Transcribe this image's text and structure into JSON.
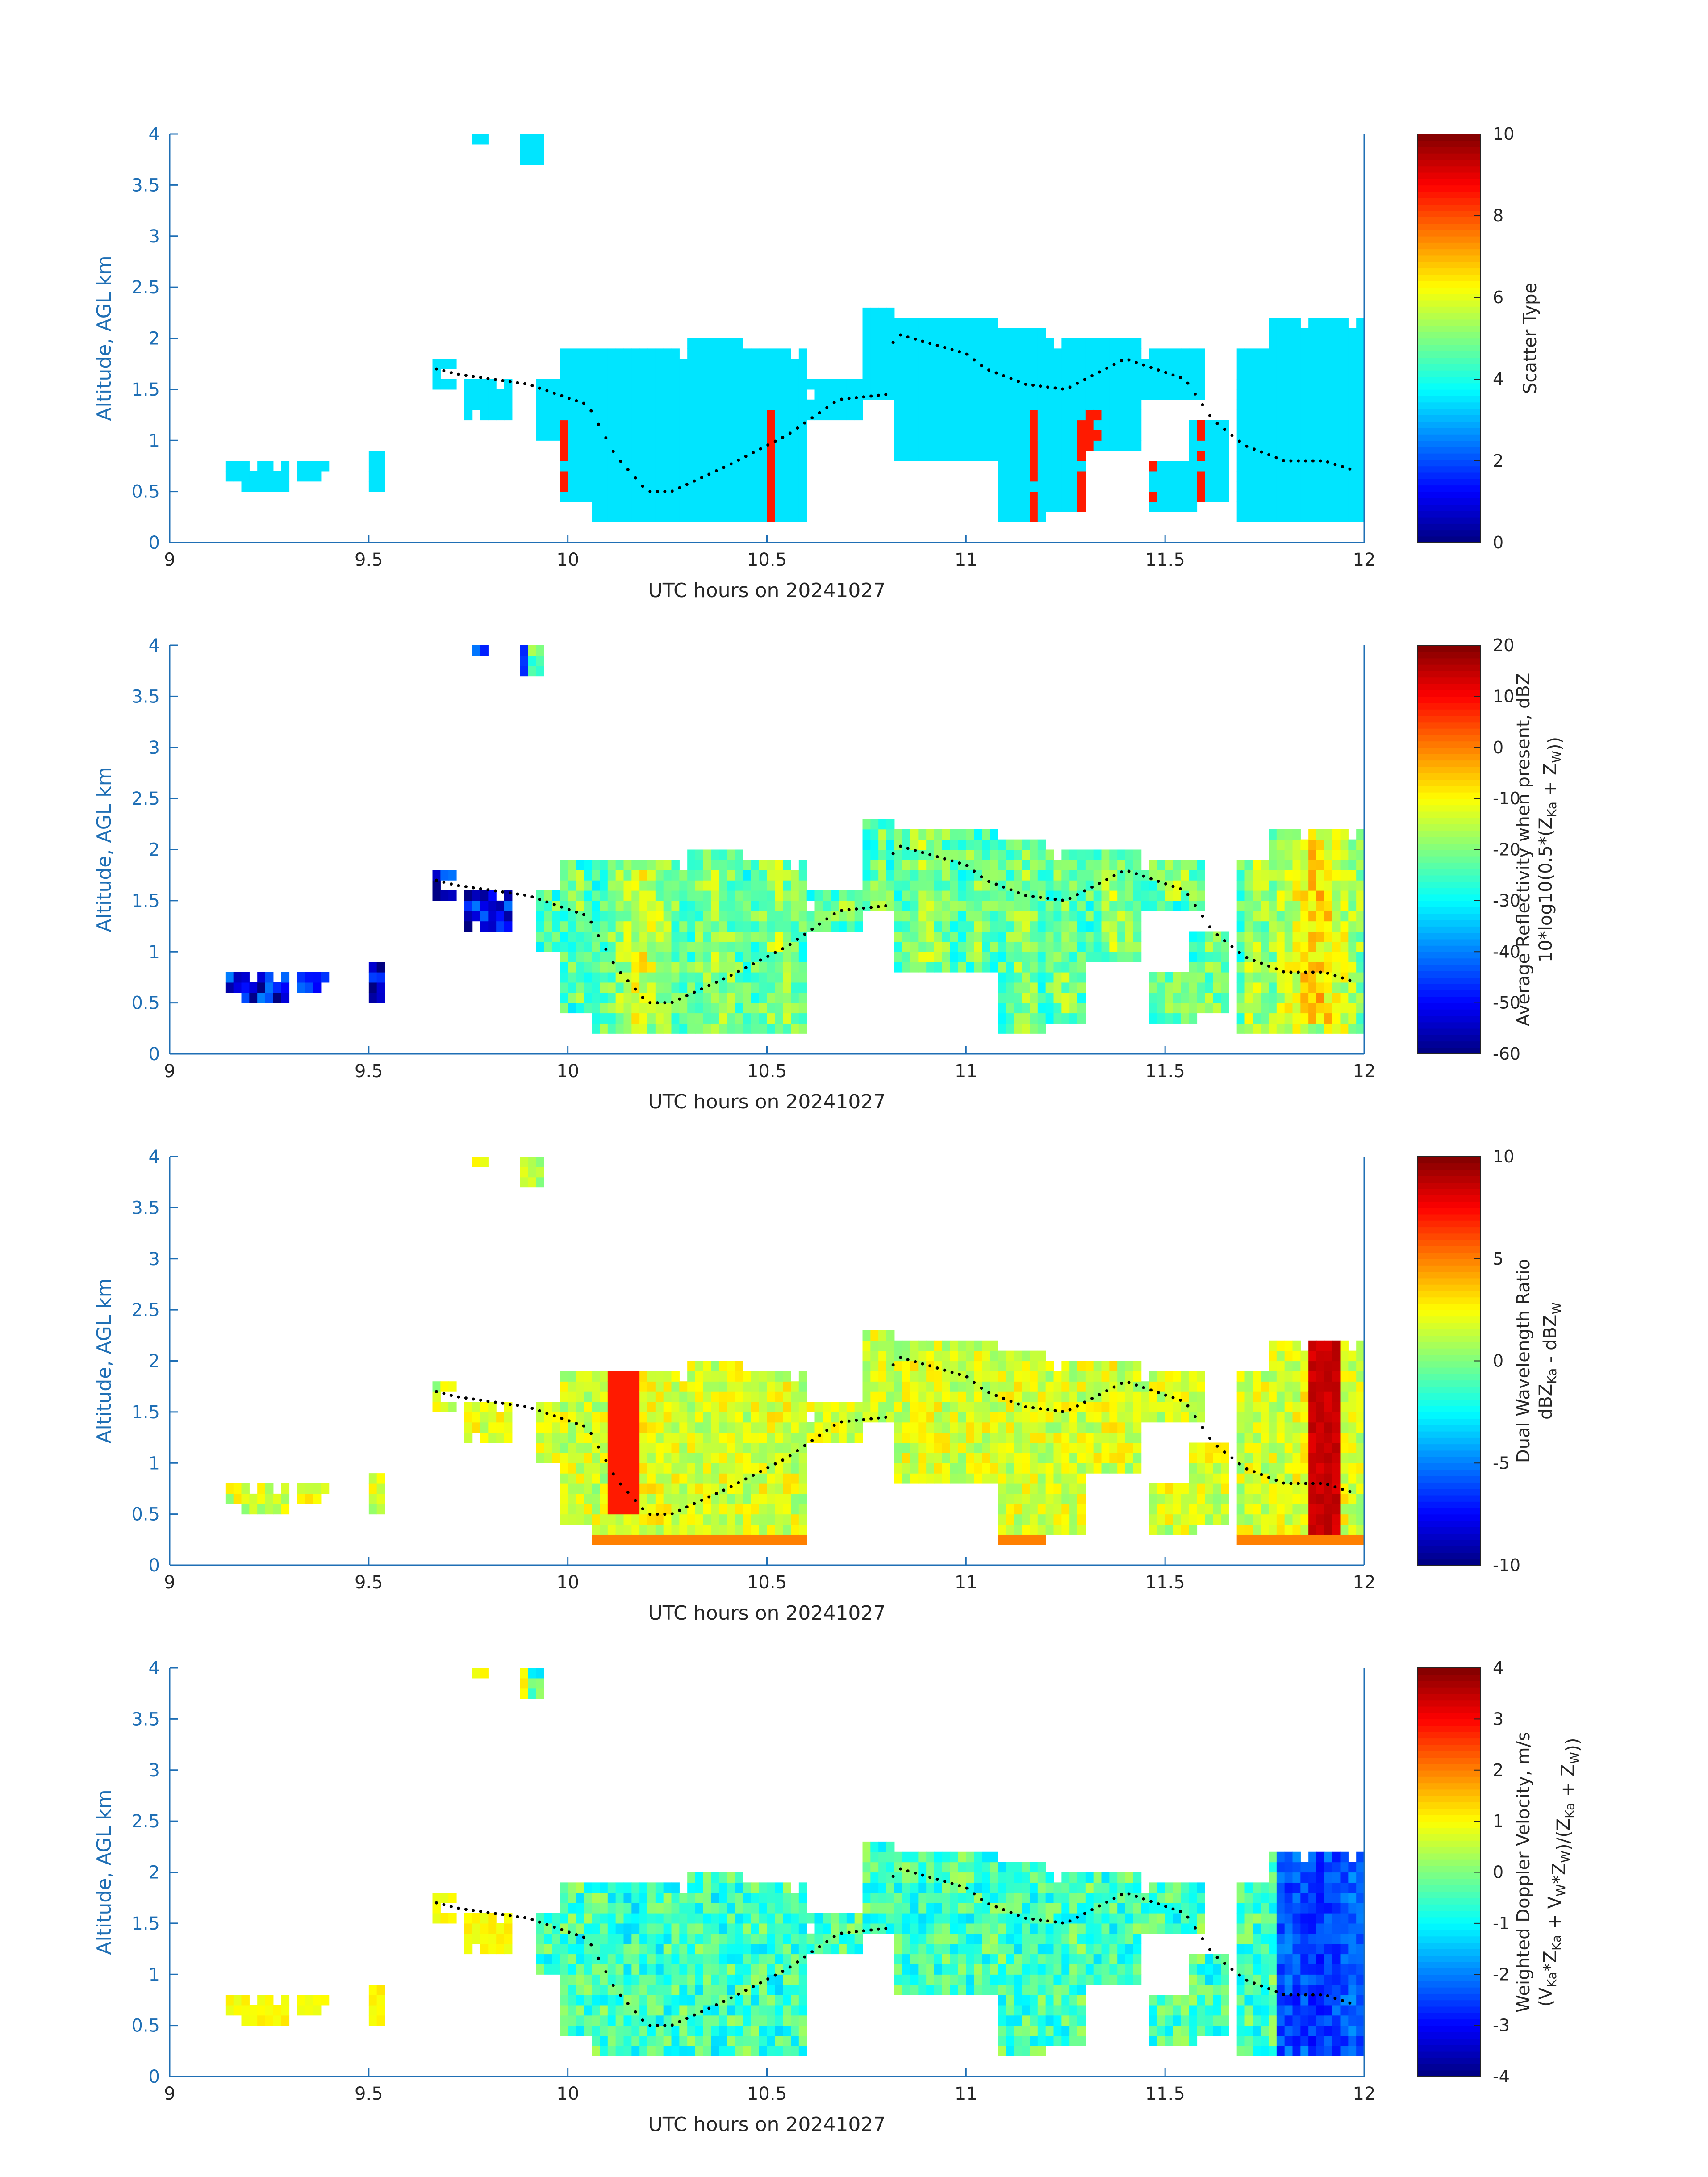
{
  "chart_data": [
    {
      "type": "heatmap",
      "title": "",
      "xlabel": "UTC hours on 20241027",
      "ylabel": "Altitude, AGL km",
      "xlim": [
        9,
        12
      ],
      "ylim": [
        0,
        4
      ],
      "xticks": [
        "9",
        "9.5",
        "10",
        "10.5",
        "11",
        "11.5",
        "12"
      ],
      "yticks": [
        "0",
        "0.5",
        "1",
        "1.5",
        "2",
        "2.5",
        "3",
        "3.5",
        "4"
      ],
      "colorbar": {
        "label_lines": [
          "Scatter Type"
        ],
        "range": [
          0,
          10
        ],
        "ticks": [
          "0",
          "2",
          "4",
          "6",
          "8",
          "10"
        ],
        "colormap": "jet"
      },
      "value_pattern": "mostly 3.5 (cyan) with scattered 8.5 (red-orange) columns"
    },
    {
      "type": "heatmap",
      "title": "",
      "xlabel": "UTC hours on 20241027",
      "ylabel": "Altitude, AGL km",
      "xlim": [
        9,
        12
      ],
      "ylim": [
        0,
        4
      ],
      "xticks": [
        "9",
        "9.5",
        "10",
        "10.5",
        "11",
        "11.5",
        "12"
      ],
      "yticks": [
        "0",
        "0.5",
        "1",
        "1.5",
        "2",
        "2.5",
        "3",
        "3.5",
        "4"
      ],
      "colorbar": {
        "label_lines": [
          "Average Reflectivity when present, dBZ",
          "10*log10(0.5*(Z_Ka + Z_W))"
        ],
        "range": [
          -60,
          20
        ],
        "ticks": [
          "-60",
          "-50",
          "-40",
          "-30",
          "-20",
          "-10",
          "0",
          "10",
          "20"
        ],
        "colormap": "jet"
      },
      "value_pattern": "edges near -55 dBZ, cloud interiors up to about 15 dBZ"
    },
    {
      "type": "heatmap",
      "title": "",
      "xlabel": "UTC hours on 20241027",
      "ylabel": "Altitude, AGL km",
      "xlim": [
        9,
        12
      ],
      "ylim": [
        0,
        4
      ],
      "xticks": [
        "9",
        "9.5",
        "10",
        "10.5",
        "11",
        "11.5",
        "12"
      ],
      "yticks": [
        "0",
        "0.5",
        "1",
        "1.5",
        "2",
        "2.5",
        "3",
        "3.5",
        "4"
      ],
      "colorbar": {
        "label_lines": [
          "Dual Wavelength Ratio",
          "dBZ_Ka - dBZ_W"
        ],
        "range": [
          -10,
          10
        ],
        "ticks": [
          "-10",
          "-5",
          "0",
          "5",
          "10"
        ],
        "colormap": "jet"
      },
      "value_pattern": "mostly 0 to 4 dB, up to about 9 dB near 11.9 h"
    },
    {
      "type": "heatmap",
      "title": "",
      "xlabel": "UTC hours on 20241027",
      "ylabel": "Altitude, AGL km",
      "xlim": [
        9,
        12
      ],
      "ylim": [
        0,
        4
      ],
      "xticks": [
        "9",
        "9.5",
        "10",
        "10.5",
        "11",
        "11.5",
        "12"
      ],
      "yticks": [
        "0",
        "0.5",
        "1",
        "1.5",
        "2",
        "2.5",
        "3",
        "3.5",
        "4"
      ],
      "colorbar": {
        "label_lines": [
          "Weighted Doppler Velocity, m/s",
          "(V_Ka*Z_Ka + V_W*Z_W)/(Z_Ka + Z_W))"
        ],
        "range": [
          -4,
          4
        ],
        "ticks": [
          "-4",
          "-3",
          "-2",
          "-1",
          "0",
          "1",
          "2",
          "3",
          "4"
        ],
        "colormap": "jet"
      },
      "value_pattern": "mostly -1.5 to 0.5 m/s, down to about -3.5 m/s near 11.9 h"
    }
  ]
}
